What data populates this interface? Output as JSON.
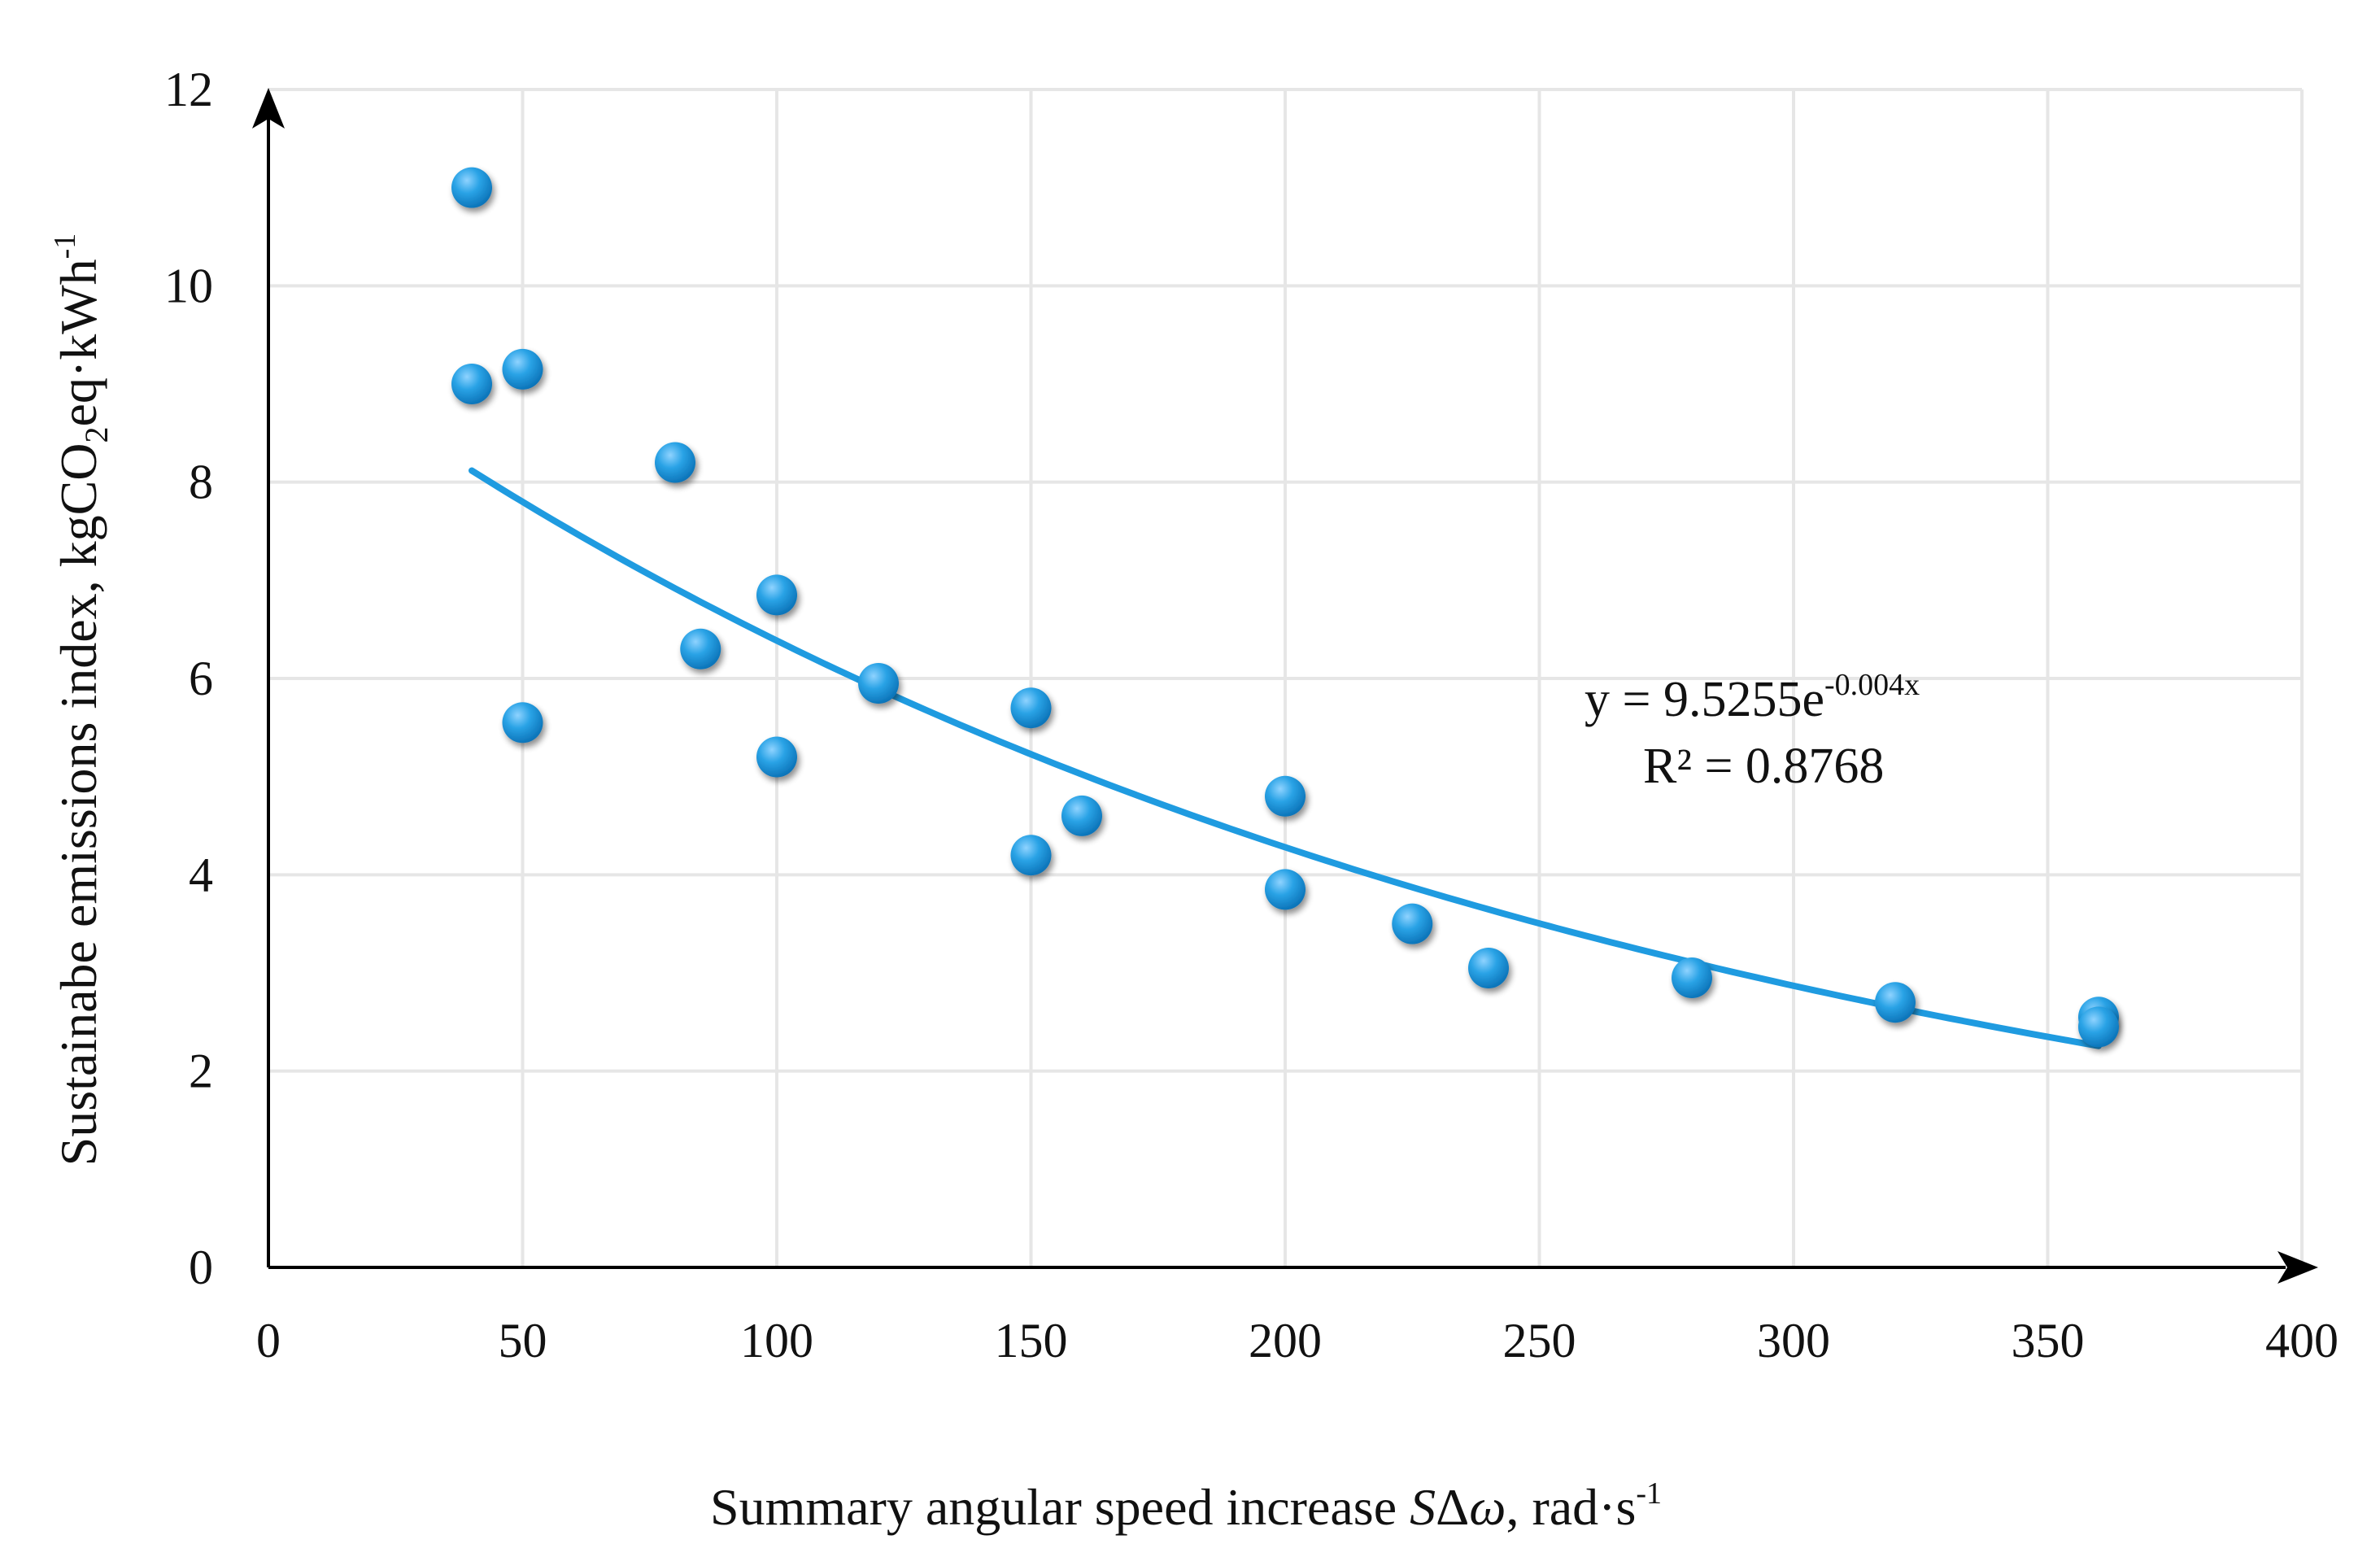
{
  "chart_data": {
    "type": "scatter",
    "title": "",
    "xlabel": {
      "prefix": "Summary angular speed increase ",
      "symbol_s": "S",
      "symbol_delta": "Δ",
      "symbol_omega": "ω",
      "units": ", rad·s",
      "units_sup": "-1"
    },
    "ylabel": {
      "prefix": "Sustainabe emissions index, kgCO",
      "sub": "2",
      "middle": "eq·kWh",
      "sup": "-1"
    },
    "xlim": [
      0,
      400
    ],
    "ylim": [
      0,
      12
    ],
    "xticks": [
      "0",
      "50",
      "100",
      "150",
      "200",
      "250",
      "300",
      "350",
      "400"
    ],
    "yticks": [
      "0",
      "2",
      "4",
      "6",
      "8",
      "10",
      "12"
    ],
    "grid": true,
    "marker_color": "#1f9be0",
    "trend_color": "#1f9be0",
    "points": [
      {
        "x": 40,
        "y": 11.0
      },
      {
        "x": 40,
        "y": 9.0
      },
      {
        "x": 50,
        "y": 9.15
      },
      {
        "x": 50,
        "y": 5.55
      },
      {
        "x": 80,
        "y": 8.2
      },
      {
        "x": 85,
        "y": 6.3
      },
      {
        "x": 100,
        "y": 6.85
      },
      {
        "x": 100,
        "y": 5.2
      },
      {
        "x": 120,
        "y": 5.95
      },
      {
        "x": 150,
        "y": 5.7
      },
      {
        "x": 150,
        "y": 4.2
      },
      {
        "x": 160,
        "y": 4.6
      },
      {
        "x": 200,
        "y": 4.8
      },
      {
        "x": 200,
        "y": 3.85
      },
      {
        "x": 225,
        "y": 3.5
      },
      {
        "x": 240,
        "y": 3.05
      },
      {
        "x": 280,
        "y": 2.95
      },
      {
        "x": 320,
        "y": 2.7
      },
      {
        "x": 360,
        "y": 2.55
      },
      {
        "x": 360,
        "y": 2.45
      }
    ],
    "trendline": {
      "type": "exponential",
      "a": 9.5255,
      "b": -0.004,
      "x_range": [
        40,
        360
      ]
    },
    "equation": {
      "lhs": "y = 9.5255e",
      "exp": "-0.004x",
      "r2": "R² = 0.8768"
    }
  }
}
